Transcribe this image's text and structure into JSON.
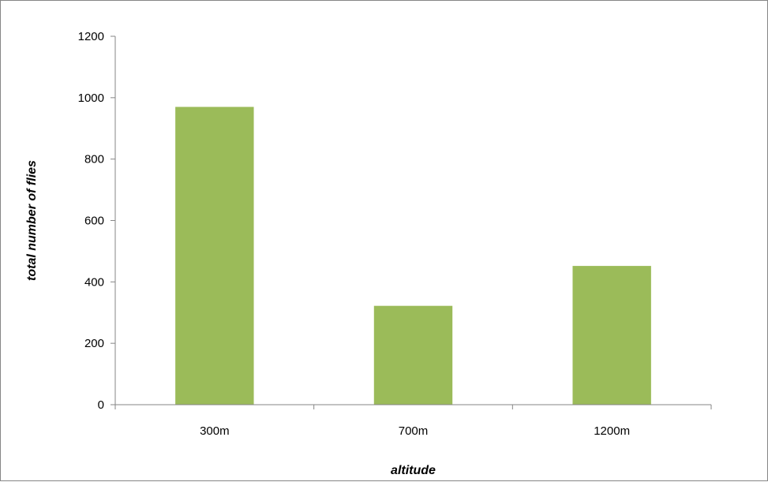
{
  "chart_data": {
    "type": "bar",
    "title": "",
    "xlabel": "altitude",
    "ylabel": "total number of flies",
    "categories": [
      "300m",
      "700m",
      "1200m"
    ],
    "values": [
      970,
      322,
      452
    ],
    "ylim": [
      0,
      1200
    ],
    "yticks": [
      "0",
      "200",
      "400",
      "600",
      "800",
      "1000",
      "1200"
    ],
    "grid": false,
    "legend": "none",
    "bar_color": "#9BBB59",
    "axis_color": "#868686"
  }
}
